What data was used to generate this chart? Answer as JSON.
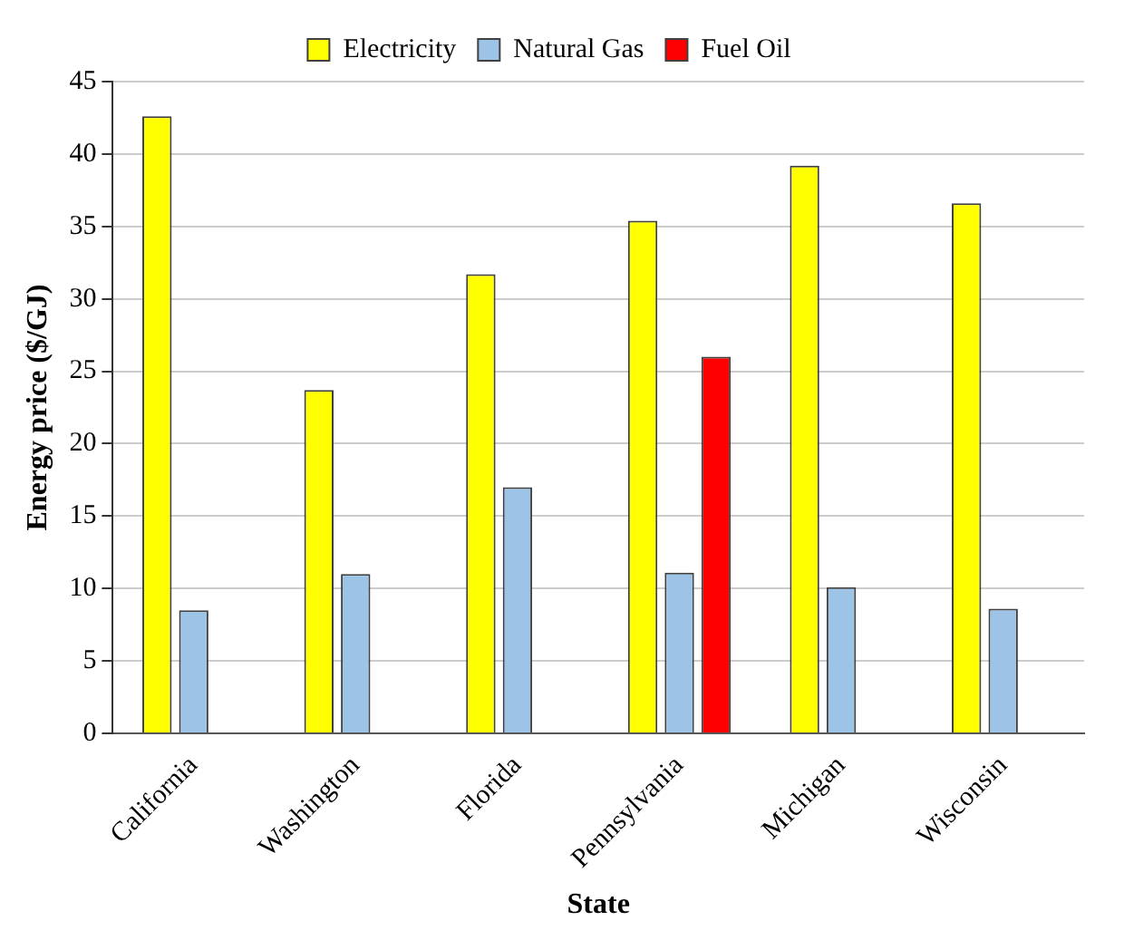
{
  "chart_data": {
    "type": "bar",
    "xlabel": "State",
    "ylabel": "Energy price ($/GJ)",
    "categories": [
      "California",
      "Washington",
      "Florida",
      "Pennsylvania",
      "Michigan",
      "Wisconsin"
    ],
    "series": [
      {
        "name": "Electricity",
        "color": "#ffff00",
        "values": [
          42.6,
          23.7,
          31.7,
          35.4,
          39.2,
          36.6
        ]
      },
      {
        "name": "Natural Gas",
        "color": "#9dc3e6",
        "values": [
          8.5,
          11.0,
          17.0,
          11.1,
          10.1,
          8.6
        ]
      },
      {
        "name": "Fuel Oil",
        "color": "#ff0000",
        "values": [
          null,
          null,
          null,
          26.0,
          null,
          null
        ]
      }
    ],
    "ylim": [
      0,
      45
    ],
    "yticks": [
      0,
      5,
      10,
      15,
      20,
      25,
      30,
      35,
      40,
      45
    ],
    "grid": "y",
    "legend": "top"
  }
}
